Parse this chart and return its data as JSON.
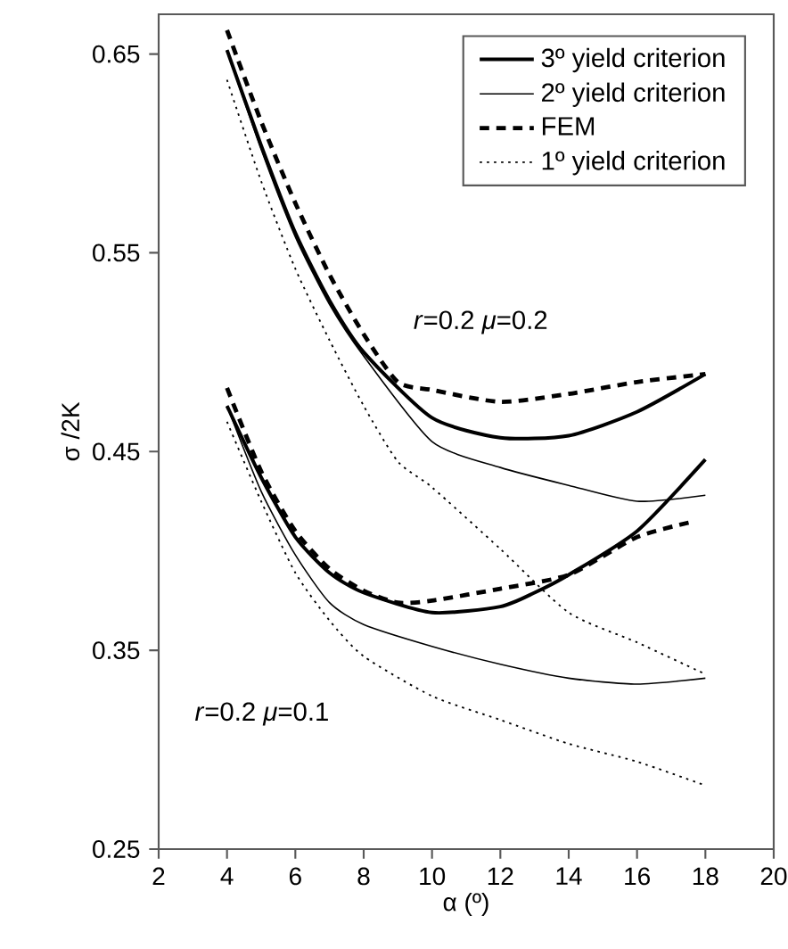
{
  "chart_data": {
    "type": "line",
    "xlabel": "α (º)",
    "ylabel": "σ /2K",
    "xlim": [
      2,
      20
    ],
    "ylim": [
      0.25,
      0.67
    ],
    "xticks": [
      2,
      4,
      6,
      8,
      10,
      12,
      14,
      16,
      18,
      20
    ],
    "yticks": [
      0.25,
      0.35,
      0.45,
      0.55,
      0.65
    ],
    "grid": false,
    "legend": "top right",
    "annotations": [
      "*r*=0.2  *μ*=0.2",
      "*r*=0.2  *μ*=0.1"
    ],
    "series": [
      {
        "name": "3º yield criterion",
        "color": "#000000",
        "line_style": "solid",
        "x": [
          4,
          5,
          6,
          7,
          8,
          10,
          12,
          14,
          16,
          18
        ],
        "values": [
          0.652,
          0.604,
          0.56,
          0.526,
          0.5,
          0.467,
          0.457,
          0.458,
          0.47,
          0.489
        ]
      },
      {
        "name": "2º yield criterion",
        "color": "#000000",
        "line_style": "solid",
        "x": [
          4,
          5,
          6,
          7,
          8,
          10,
          12,
          14,
          16,
          18
        ],
        "values": [
          0.652,
          0.602,
          0.558,
          0.524,
          0.498,
          0.455,
          0.442,
          0.433,
          0.425,
          0.428
        ]
      },
      {
        "name": "FEM",
        "color": "#000000",
        "line_style": "dashed",
        "x": [
          4,
          5,
          6,
          7,
          8,
          9,
          10,
          12,
          14,
          16,
          18
        ],
        "values": [
          0.662,
          0.616,
          0.575,
          0.539,
          0.509,
          0.485,
          0.481,
          0.475,
          0.479,
          0.485,
          0.489
        ]
      },
      {
        "name": "1º yield criterion",
        "color": "#000000",
        "line_style": "dotted",
        "x": [
          4,
          5,
          6,
          7,
          8,
          9,
          10,
          12,
          14,
          16,
          18
        ],
        "values": [
          0.637,
          0.586,
          0.542,
          0.506,
          0.473,
          0.445,
          0.432,
          0.401,
          0.369,
          0.354,
          0.338
        ]
      },
      {
        "color": "#000000",
        "line_style": "solid",
        "x": [
          4,
          5,
          6,
          7,
          8,
          10,
          12,
          13,
          14,
          16,
          18
        ],
        "values": [
          0.473,
          0.437,
          0.407,
          0.389,
          0.379,
          0.369,
          0.372,
          0.379,
          0.388,
          0.41,
          0.446
        ]
      },
      {
        "color": "#000000",
        "line_style": "solid",
        "x": [
          4,
          5,
          6,
          7,
          8,
          10,
          12,
          14,
          16,
          18
        ],
        "values": [
          0.473,
          0.43,
          0.398,
          0.374,
          0.363,
          0.352,
          0.343,
          0.336,
          0.333,
          0.336
        ]
      },
      {
        "color": "#000000",
        "line_style": "dashed",
        "x": [
          4,
          5,
          6,
          7,
          8,
          9,
          10,
          12,
          14,
          16,
          17.7
        ],
        "values": [
          0.482,
          0.44,
          0.41,
          0.391,
          0.38,
          0.374,
          0.375,
          0.381,
          0.388,
          0.407,
          0.415
        ]
      },
      {
        "color": "#000000",
        "line_style": "dotted",
        "x": [
          4,
          5,
          6,
          7,
          8,
          10,
          12,
          14,
          16,
          18
        ],
        "values": [
          0.465,
          0.425,
          0.389,
          0.365,
          0.347,
          0.327,
          0.315,
          0.303,
          0.294,
          0.282
        ]
      }
    ]
  }
}
